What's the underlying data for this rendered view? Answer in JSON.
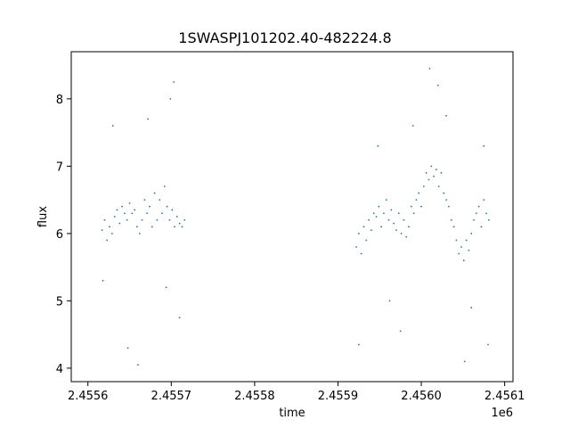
{
  "chart_data": {
    "type": "scatter",
    "title": "1SWASPJ101202.40-482224.8",
    "xlabel": "time",
    "ylabel": "flux",
    "x_offset_label": "1e6",
    "xlim": [
      2455580,
      2456110
    ],
    "ylim": [
      3.8,
      8.7
    ],
    "x_ticks": [
      2455600,
      2455700,
      2455800,
      2455900,
      2456000,
      2456100
    ],
    "x_tick_labels": [
      "2.4556",
      "2.4557",
      "2.4558",
      "2.4559",
      "2.4560",
      "2.4561"
    ],
    "y_ticks": [
      4,
      5,
      6,
      7,
      8
    ],
    "y_tick_labels": [
      "4",
      "5",
      "6",
      "7",
      "8"
    ],
    "grid": false,
    "marker_color": "#1f77b4",
    "series": [
      {
        "points": [
          [
            2455617,
            6.05
          ],
          [
            2455620,
            6.2
          ],
          [
            2455623,
            5.9
          ],
          [
            2455626,
            6.1
          ],
          [
            2455629,
            6.0
          ],
          [
            2455632,
            6.25
          ],
          [
            2455635,
            6.35
          ],
          [
            2455638,
            6.15
          ],
          [
            2455641,
            6.4
          ],
          [
            2455644,
            6.3
          ],
          [
            2455647,
            6.2
          ],
          [
            2455650,
            6.45
          ],
          [
            2455653,
            6.3
          ],
          [
            2455656,
            6.35
          ],
          [
            2455659,
            6.1
          ],
          [
            2455662,
            6.0
          ],
          [
            2455665,
            6.2
          ],
          [
            2455668,
            6.5
          ],
          [
            2455671,
            6.3
          ],
          [
            2455674,
            6.4
          ],
          [
            2455677,
            6.1
          ],
          [
            2455680,
            6.6
          ],
          [
            2455683,
            6.2
          ],
          [
            2455686,
            6.5
          ],
          [
            2455689,
            6.3
          ],
          [
            2455692,
            6.7
          ],
          [
            2455695,
            6.4
          ],
          [
            2455698,
            6.2
          ],
          [
            2455701,
            6.35
          ],
          [
            2455704,
            6.1
          ],
          [
            2455707,
            6.25
          ],
          [
            2455710,
            6.15
          ],
          [
            2455713,
            6.1
          ],
          [
            2455716,
            6.2
          ],
          [
            2455618,
            5.3
          ],
          [
            2455630,
            7.6
          ],
          [
            2455648,
            4.3
          ],
          [
            2455660,
            4.05
          ],
          [
            2455672,
            7.7
          ],
          [
            2455694,
            5.2
          ],
          [
            2455699,
            8.0
          ],
          [
            2455710,
            4.75
          ],
          [
            2455703,
            8.25
          ],
          [
            2455922,
            5.8
          ],
          [
            2455925,
            6.0
          ],
          [
            2455928,
            5.7
          ],
          [
            2455931,
            6.1
          ],
          [
            2455934,
            5.9
          ],
          [
            2455937,
            6.2
          ],
          [
            2455940,
            6.05
          ],
          [
            2455943,
            6.3
          ],
          [
            2455946,
            6.25
          ],
          [
            2455949,
            6.4
          ],
          [
            2455952,
            6.1
          ],
          [
            2455955,
            6.3
          ],
          [
            2455958,
            6.5
          ],
          [
            2455961,
            6.2
          ],
          [
            2455964,
            6.35
          ],
          [
            2455967,
            6.15
          ],
          [
            2455970,
            6.05
          ],
          [
            2455973,
            6.3
          ],
          [
            2455976,
            6.0
          ],
          [
            2455979,
            6.2
          ],
          [
            2455982,
            5.95
          ],
          [
            2455985,
            6.1
          ],
          [
            2455988,
            6.4
          ],
          [
            2455991,
            6.3
          ],
          [
            2455994,
            6.5
          ],
          [
            2455997,
            6.6
          ],
          [
            2456000,
            6.4
          ],
          [
            2456003,
            6.7
          ],
          [
            2456006,
            6.9
          ],
          [
            2456009,
            6.8
          ],
          [
            2456012,
            7.0
          ],
          [
            2456015,
            6.85
          ],
          [
            2456018,
            6.95
          ],
          [
            2456021,
            6.7
          ],
          [
            2456024,
            6.9
          ],
          [
            2456027,
            6.6
          ],
          [
            2456030,
            6.5
          ],
          [
            2456033,
            6.4
          ],
          [
            2456036,
            6.2
          ],
          [
            2456039,
            6.1
          ],
          [
            2456042,
            5.9
          ],
          [
            2456045,
            5.7
          ],
          [
            2456048,
            5.8
          ],
          [
            2456051,
            5.6
          ],
          [
            2456054,
            5.9
          ],
          [
            2456057,
            5.75
          ],
          [
            2456060,
            6.0
          ],
          [
            2456063,
            6.2
          ],
          [
            2456066,
            6.3
          ],
          [
            2456069,
            6.4
          ],
          [
            2456072,
            6.1
          ],
          [
            2456075,
            6.5
          ],
          [
            2456078,
            6.3
          ],
          [
            2456081,
            6.2
          ],
          [
            2455925,
            4.35
          ],
          [
            2455948,
            7.3
          ],
          [
            2455962,
            5.0
          ],
          [
            2455975,
            4.55
          ],
          [
            2455990,
            7.6
          ],
          [
            2456010,
            8.45
          ],
          [
            2456020,
            8.2
          ],
          [
            2456030,
            7.75
          ],
          [
            2456052,
            4.1
          ],
          [
            2456060,
            4.9
          ],
          [
            2456075,
            7.3
          ],
          [
            2456080,
            4.35
          ]
        ]
      }
    ]
  }
}
